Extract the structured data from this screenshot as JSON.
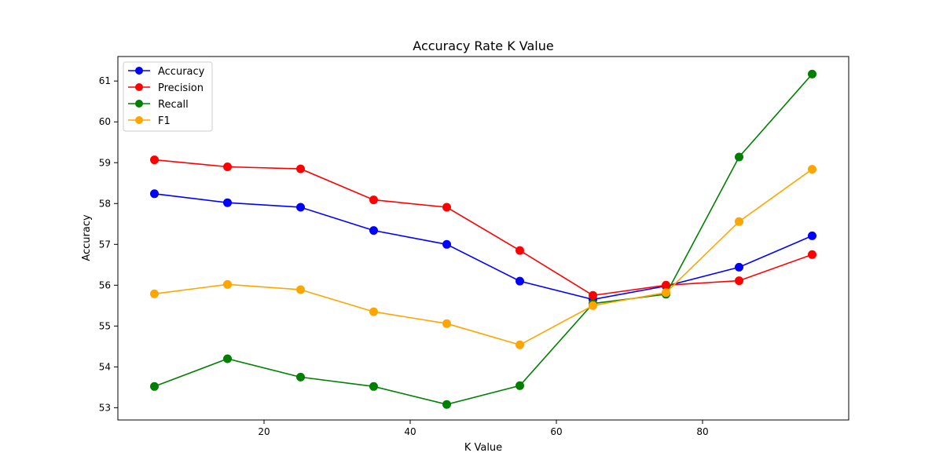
{
  "chart_data": {
    "type": "line",
    "title": "Accuracy Rate K Value",
    "xlabel": "K Value",
    "ylabel": "Accuracy",
    "x": [
      5,
      15,
      25,
      35,
      45,
      55,
      65,
      75,
      85,
      95
    ],
    "xlim": [
      0,
      100
    ],
    "ylim": [
      52.7,
      61.6
    ],
    "xticks": [
      20,
      40,
      60,
      80
    ],
    "yticks": [
      53,
      54,
      55,
      56,
      57,
      58,
      59,
      60,
      61
    ],
    "grid": false,
    "legend_position": "top-left",
    "series": [
      {
        "name": "Accuracy",
        "color": "#0000ff",
        "values": [
          58.24,
          58.02,
          57.91,
          57.34,
          57.0,
          56.1,
          55.65,
          55.98,
          56.44,
          57.21
        ]
      },
      {
        "name": "Precision",
        "color": "#ff0000",
        "values": [
          59.07,
          58.9,
          58.85,
          58.09,
          57.91,
          56.85,
          55.75,
          56.0,
          56.11,
          56.75
        ]
      },
      {
        "name": "Recall",
        "color": "#008000",
        "values": [
          53.52,
          54.2,
          53.75,
          53.52,
          53.08,
          53.54,
          55.55,
          55.78,
          59.14,
          61.17
        ]
      },
      {
        "name": "F1",
        "color": "#ffa500",
        "values": [
          55.79,
          56.02,
          55.89,
          55.35,
          55.06,
          54.54,
          55.5,
          55.82,
          57.56,
          58.84
        ]
      }
    ]
  }
}
